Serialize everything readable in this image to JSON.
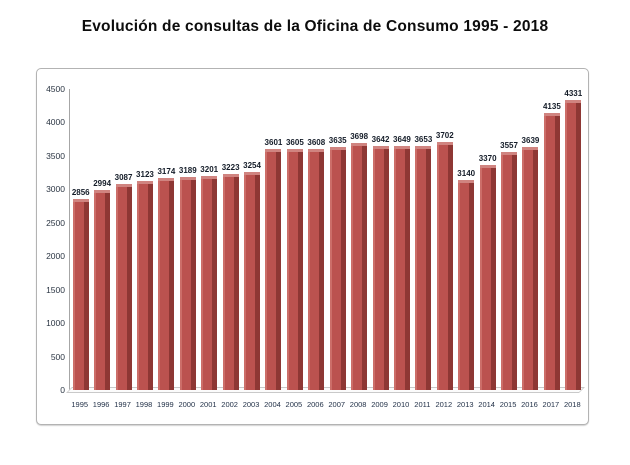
{
  "title": "Evolución de consultas de la Oficina de Consumo 1995 - 2018",
  "chart_data": {
    "type": "bar",
    "title": "Evolución de consultas de la Oficina de Consumo 1995 - 2018",
    "categories": [
      "1995",
      "1996",
      "1997",
      "1998",
      "1999",
      "2000",
      "2001",
      "2002",
      "2003",
      "2004",
      "2005",
      "2006",
      "2007",
      "2008",
      "2009",
      "2010",
      "2011",
      "2012",
      "2013",
      "2014",
      "2015",
      "2016",
      "2017",
      "2018"
    ],
    "values": [
      2856,
      2994,
      3087,
      3123,
      3174,
      3189,
      3201,
      3223,
      3254,
      3601,
      3605,
      3608,
      3635,
      3698,
      3642,
      3649,
      3653,
      3702,
      3140,
      3370,
      3557,
      3639,
      4135,
      4331
    ],
    "xlabel": "",
    "ylabel": "",
    "ylim": [
      0,
      4500
    ],
    "yticks": [
      0,
      500,
      1000,
      1500,
      2000,
      2500,
      3000,
      3500,
      4000,
      4500
    ],
    "grid": false,
    "legend_position": "none",
    "data_labels": true,
    "bar_style_3d": true,
    "colors": {
      "bar_face": "#bb524f",
      "bar_side": "#8e3734",
      "bar_highlight": "#cc6e69",
      "bar_top": "#d08480",
      "frame_border": "#b3b3b3",
      "axis_line": "#a6a6a6",
      "label_text": "#141c28",
      "tick_text": "#1f2e45"
    }
  }
}
